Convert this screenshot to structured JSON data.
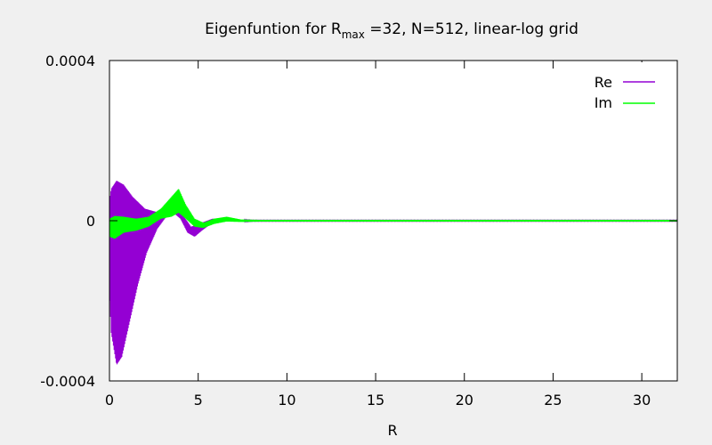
{
  "chart_data": {
    "type": "line",
    "title": {
      "prefix": "Eigenfuntion for R",
      "subscript": "max",
      "suffix": " =32, N=512, linear-log grid"
    },
    "xlabel": "R",
    "ylabel": "",
    "xlim": [
      0,
      32
    ],
    "ylim": [
      -0.0004,
      0.0004
    ],
    "x_ticks": [
      {
        "value": 0,
        "label": "0"
      },
      {
        "value": 5,
        "label": "5"
      },
      {
        "value": 10,
        "label": "10"
      },
      {
        "value": 15,
        "label": "15"
      },
      {
        "value": 20,
        "label": "20"
      },
      {
        "value": 25,
        "label": "25"
      },
      {
        "value": 30,
        "label": "30"
      }
    ],
    "y_ticks": [
      {
        "value": -0.0004,
        "label": "-0.0004"
      },
      {
        "value": 0,
        "label": "0"
      },
      {
        "value": 0.0004,
        "label": "0.0004"
      }
    ],
    "grid": false,
    "legend_position": "top-right",
    "series": [
      {
        "name": "Re",
        "color": "#9400d3",
        "style": "rapidly-oscillating band",
        "upper_envelope": [
          [
            0,
            5e-05
          ],
          [
            0.1,
            8e-05
          ],
          [
            0.4,
            0.0001
          ],
          [
            0.8,
            9e-05
          ],
          [
            1.3,
            6e-05
          ],
          [
            2,
            3e-05
          ],
          [
            2.8,
            2e-05
          ],
          [
            3.4,
            3.5e-05
          ],
          [
            3.8,
            4e-05
          ],
          [
            4.2,
            1e-05
          ],
          [
            4.6,
            -1.5e-05
          ],
          [
            5.2,
            -5e-06
          ],
          [
            5.8,
            5e-06
          ],
          [
            6.6,
            5e-06
          ],
          [
            7.4,
            2e-06
          ],
          [
            8,
            1e-06
          ],
          [
            10,
            1e-06
          ],
          [
            32,
            1e-06
          ]
        ],
        "lower_envelope": [
          [
            0,
            -0.00018
          ],
          [
            0.1,
            -0.00028
          ],
          [
            0.4,
            -0.00036
          ],
          [
            0.7,
            -0.00034
          ],
          [
            1.1,
            -0.00026
          ],
          [
            1.6,
            -0.00016
          ],
          [
            2.1,
            -8e-05
          ],
          [
            2.7,
            -2e-05
          ],
          [
            3.2,
            1e-05
          ],
          [
            3.6,
            2e-05
          ],
          [
            4,
            5e-06
          ],
          [
            4.4,
            -3e-05
          ],
          [
            4.8,
            -4e-05
          ],
          [
            5.2,
            -2.5e-05
          ],
          [
            5.8,
            -5e-06
          ],
          [
            6.6,
            1e-06
          ],
          [
            7.4,
            -2e-06
          ],
          [
            8,
            -1e-06
          ],
          [
            10,
            -1e-06
          ],
          [
            32,
            -1e-06
          ]
        ]
      },
      {
        "name": "Im",
        "color": "#00ff00",
        "style": "rapidly-oscillating band",
        "upper_envelope": [
          [
            0,
            5e-06
          ],
          [
            0.3,
            1.2e-05
          ],
          [
            0.8,
            1e-05
          ],
          [
            1.5,
            5e-06
          ],
          [
            2.2,
            1e-05
          ],
          [
            2.9,
            3e-05
          ],
          [
            3.5,
            6e-05
          ],
          [
            3.9,
            8e-05
          ],
          [
            4.3,
            4e-05
          ],
          [
            4.8,
            5e-06
          ],
          [
            5.3,
            -5e-06
          ],
          [
            5.9,
            5e-06
          ],
          [
            6.6,
            1e-05
          ],
          [
            7.4,
            3e-06
          ],
          [
            8.5,
            2e-06
          ],
          [
            10,
            2e-06
          ],
          [
            32,
            2e-06
          ]
        ],
        "lower_envelope": [
          [
            0,
            -4e-05
          ],
          [
            0.3,
            -4.5e-05
          ],
          [
            0.8,
            -3e-05
          ],
          [
            1.5,
            -2.5e-05
          ],
          [
            2.2,
            -1.5e-05
          ],
          [
            2.9,
            5e-06
          ],
          [
            3.5,
            1e-05
          ],
          [
            3.9,
            2e-05
          ],
          [
            4.3,
            5e-06
          ],
          [
            4.8,
            -1.5e-05
          ],
          [
            5.3,
            -1.8e-05
          ],
          [
            5.9,
            -8e-06
          ],
          [
            6.6,
            -2e-06
          ],
          [
            7.4,
            -3e-06
          ],
          [
            8.5,
            -2e-06
          ],
          [
            10,
            -2e-06
          ],
          [
            32,
            -2e-06
          ]
        ]
      }
    ]
  }
}
